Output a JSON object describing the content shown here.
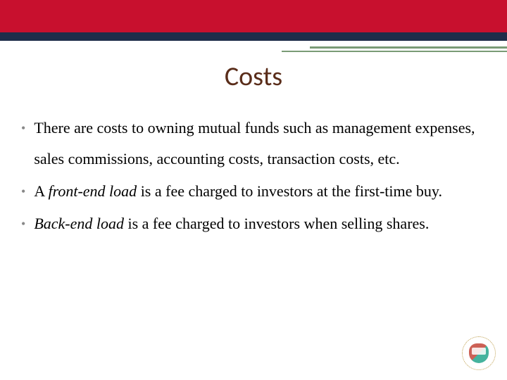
{
  "colors": {
    "top_bar_red": "#c8102e",
    "top_bar_navy": "#1f2d4a",
    "accent_line": "#7a9b76",
    "title_color": "#5a2d1a",
    "text_color": "#000000",
    "bullet_color": "#888888",
    "background": "#ffffff"
  },
  "typography": {
    "title_fontsize": 38,
    "body_fontsize": 22,
    "body_lineheight": 44,
    "title_family": "Candara",
    "body_family": "Georgia"
  },
  "title": "Costs",
  "bullets": [
    {
      "segments": [
        {
          "text": "There are costs to owning mutual funds such as management expenses, sales commissions, accounting costs, transaction costs, etc.",
          "italic": false
        }
      ]
    },
    {
      "segments": [
        {
          "text": "A ",
          "italic": false
        },
        {
          "text": "front-end load",
          "italic": true
        },
        {
          "text": " is a fee charged to investors at the first-time buy.",
          "italic": false
        }
      ]
    },
    {
      "segments": [
        {
          "text": "Back-end load",
          "italic": true
        },
        {
          "text": " is a fee charged to investors when selling shares.",
          "italic": false
        }
      ]
    }
  ],
  "logo": {
    "name": "university-logo",
    "ring_color": "#bfa050",
    "shield_colors": [
      "#c0392b",
      "#16a085"
    ]
  }
}
